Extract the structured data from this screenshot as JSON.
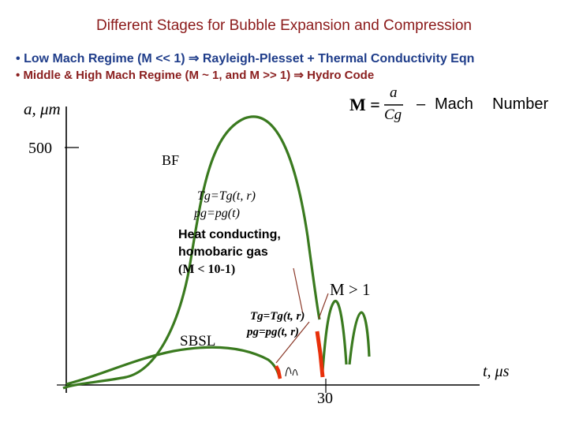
{
  "title": "Different Stages for Bubble Expansion and Compression",
  "bullets": {
    "low": {
      "marker": "•",
      "text": "Low Mach Regime (M << 1)",
      "arrow": "⇒",
      "result": "Rayleigh-Plesset + Thermal Conductivity Eqn"
    },
    "high": {
      "marker": "•",
      "text": "Middle & High Mach Regime (M ~ 1, and M >> 1)",
      "arrow": "⇒",
      "result": "Hydro Code"
    }
  },
  "formula": {
    "lhs": "M =",
    "numerator": "a",
    "denominator": "Cg",
    "dash": "–",
    "word1": "Mach",
    "word2": "Number"
  },
  "axes": {
    "y_label": "a, μm",
    "y_tick": "500",
    "x_label": "t, μs",
    "x_tick": "30"
  },
  "labels": {
    "bf": "BF",
    "sbsl": "SBSL",
    "m_gt_1": "M > 1",
    "heat_1": "Tg=Tg(t, r)",
    "heat_2": "pg=pg(t)",
    "heat_3": "Heat conducting,",
    "heat_4": "homobaric gas",
    "heat_5": "(M < 10-1)",
    "sbsl_1": "Tg=Tg(t, r)",
    "sbsl_2": "pg=pg(t, r)"
  },
  "colors": {
    "curve": "#3a7a1f",
    "highlight": "#e8300a",
    "leader": "#8b3a2a",
    "title": "#8b1a1a",
    "low_bullet": "#1f3d8a",
    "high_bullet": "#8b2020"
  }
}
